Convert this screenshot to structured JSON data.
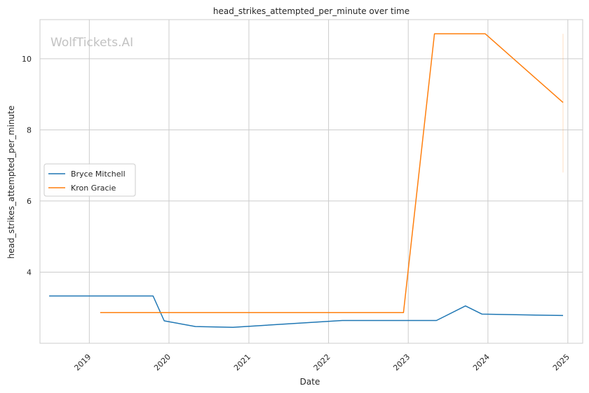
{
  "chart_data": {
    "type": "line",
    "title": "head_strikes_attempted_per_minute over time",
    "xlabel": "Date",
    "ylabel": "head_strikes_attempted_per_minute",
    "watermark": "WolfTickets.AI",
    "xlim": [
      "2018-05-20",
      "2025-03-10"
    ],
    "ylim": [
      2.0,
      11.1
    ],
    "x_ticks": [
      "2019-01-01",
      "2020-01-01",
      "2021-01-01",
      "2022-01-01",
      "2023-01-01",
      "2024-01-01",
      "2025-01-01"
    ],
    "x_tick_labels": [
      "2019",
      "2020",
      "2021",
      "2022",
      "2023",
      "2024",
      "2025"
    ],
    "y_ticks": [
      4,
      6,
      8,
      10
    ],
    "y_tick_labels": [
      "4",
      "6",
      "8",
      "10"
    ],
    "grid": true,
    "legend": "center-left",
    "series": [
      {
        "name": "Bryce Mitchell",
        "color": "#1f77b4",
        "points": [
          {
            "x": "2018-07-01",
            "y": 3.33
          },
          {
            "x": "2019-10-20",
            "y": 3.33
          },
          {
            "x": "2019-12-10",
            "y": 2.63
          },
          {
            "x": "2020-05-01",
            "y": 2.47
          },
          {
            "x": "2020-10-20",
            "y": 2.45
          },
          {
            "x": "2022-03-05",
            "y": 2.64
          },
          {
            "x": "2023-05-10",
            "y": 2.64
          },
          {
            "x": "2023-09-20",
            "y": 3.05
          },
          {
            "x": "2023-12-05",
            "y": 2.82
          },
          {
            "x": "2024-12-10",
            "y": 2.78
          }
        ]
      },
      {
        "name": "Kron Gracie",
        "color": "#ff7f0e",
        "points": [
          {
            "x": "2019-02-20",
            "y": 2.86
          },
          {
            "x": "2022-12-10",
            "y": 2.86
          },
          {
            "x": "2023-05-01",
            "y": 10.7
          },
          {
            "x": "2023-12-20",
            "y": 10.7
          },
          {
            "x": "2024-12-10",
            "y": 8.77
          }
        ],
        "error_band": {
          "x": "2024-12-10",
          "y_low": 6.8,
          "y_high": 10.7
        }
      }
    ]
  }
}
